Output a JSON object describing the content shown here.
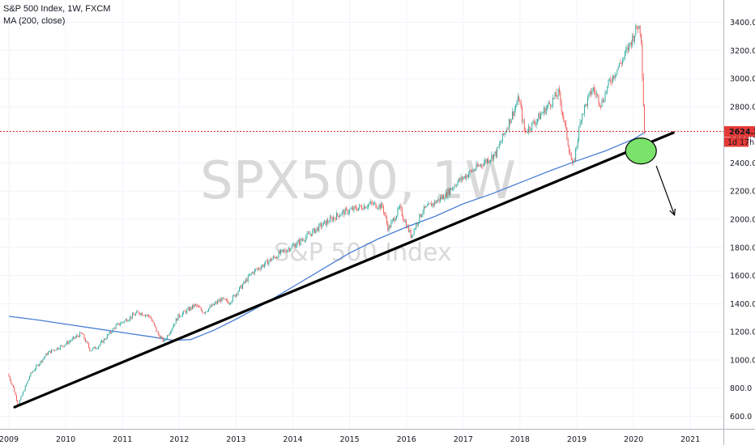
{
  "legend": {
    "title": "S&P 500 Index, 1W, FXCM",
    "indicator": "MA (200, close)"
  },
  "watermark": {
    "symbol": "SPX500, 1W",
    "name": "S&P 500 Index"
  },
  "price_label": {
    "value": "2624.2",
    "countdown": "1d 17h"
  },
  "colors": {
    "up": "#26a69a",
    "down": "#ef5350",
    "ma": "#4a7fd6",
    "trendline": "#000000",
    "circle_fill": "#7be36b",
    "price_line": "#e53935"
  },
  "chart_data": {
    "type": "candlestick",
    "symbol": "S&P 500 Index",
    "timeframe": "1W",
    "source": "FXCM",
    "x_tick_labels": [
      "2009",
      "2010",
      "2011",
      "2012",
      "2013",
      "2014",
      "2015",
      "2016",
      "2017",
      "2018",
      "2019",
      "2020",
      "2021"
    ],
    "y_tick_labels": [
      "600.0",
      "800.0",
      "1000.0",
      "1200.0",
      "1400.0",
      "1600.0",
      "1800.0",
      "2000.0",
      "2200.0",
      "2400.0",
      "2600.0",
      "2800.0",
      "3000.0",
      "3200.0",
      "3400.0"
    ],
    "xlim": [
      2009.0,
      2021.4
    ],
    "ylim": [
      560,
      3560
    ],
    "last_price": 2624.2,
    "price_series": {
      "x": [
        2009.0,
        2009.1,
        2009.18,
        2009.4,
        2009.7,
        2010.0,
        2010.3,
        2010.45,
        2010.6,
        2010.9,
        2011.3,
        2011.5,
        2011.65,
        2011.75,
        2012.0,
        2012.3,
        2012.45,
        2012.75,
        2012.9,
        2013.3,
        2013.8,
        2014.1,
        2014.5,
        2014.85,
        2015.0,
        2015.4,
        2015.6,
        2015.7,
        2015.9,
        2016.1,
        2016.3,
        2016.7,
        2016.9,
        2017.3,
        2017.6,
        2018.0,
        2018.1,
        2018.3,
        2018.7,
        2018.95,
        2019.1,
        2019.3,
        2019.45,
        2019.6,
        2019.85,
        2020.1,
        2020.15,
        2020.18,
        2020.21
      ],
      "values": [
        900,
        800,
        680,
        900,
        1050,
        1110,
        1190,
        1070,
        1100,
        1240,
        1340,
        1310,
        1180,
        1130,
        1310,
        1390,
        1340,
        1430,
        1410,
        1620,
        1760,
        1830,
        1950,
        2040,
        2060,
        2110,
        2090,
        1930,
        2080,
        1880,
        2060,
        2170,
        2260,
        2380,
        2470,
        2860,
        2620,
        2700,
        2900,
        2360,
        2740,
        2930,
        2820,
        2980,
        3150,
        3380,
        3330,
        2960,
        2624
      ]
    },
    "ma_series": {
      "name": "MA (200, close)",
      "x": [
        2009.0,
        2009.5,
        2010.0,
        2010.5,
        2011.0,
        2011.5,
        2011.9,
        2012.2,
        2012.6,
        2013.0,
        2013.5,
        2014.0,
        2014.5,
        2015.0,
        2015.5,
        2016.0,
        2016.5,
        2017.0,
        2017.5,
        2018.0,
        2018.5,
        2019.0,
        2019.5,
        2020.0,
        2020.21
      ],
      "values": [
        1310,
        1285,
        1255,
        1225,
        1195,
        1165,
        1140,
        1145,
        1210,
        1290,
        1400,
        1520,
        1640,
        1760,
        1860,
        1945,
        2020,
        2110,
        2180,
        2260,
        2340,
        2415,
        2485,
        2570,
        2620
      ]
    },
    "annotations": {
      "trendline": {
        "x": [
          2009.1,
          2020.7
        ],
        "values": [
          665,
          2615
        ]
      },
      "circle": {
        "x": 2020.13,
        "value": 2485
      },
      "arrow": {
        "x": [
          2020.4,
          2020.72
        ],
        "values": [
          2380,
          2030
        ]
      },
      "price_line": {
        "value": 2624.2
      }
    }
  }
}
